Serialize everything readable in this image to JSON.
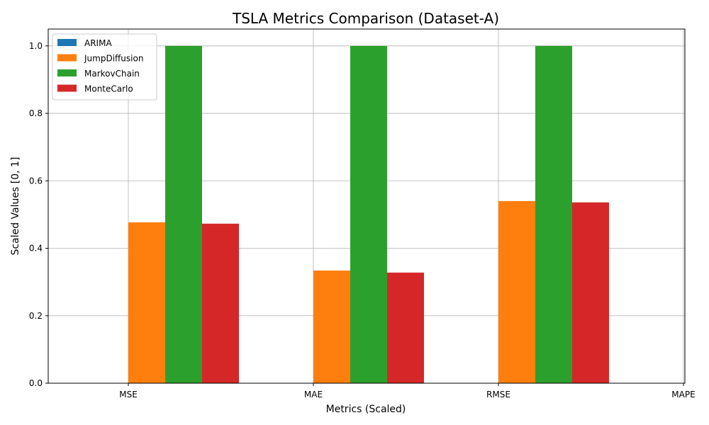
{
  "chart_data": {
    "type": "bar",
    "title": "TSLA Metrics Comparison (Dataset-A)",
    "xlabel": "Metrics (Scaled)",
    "ylabel": "Scaled Values [0, 1]",
    "categories": [
      "MSE",
      "MAE",
      "RMSE",
      "MAPE"
    ],
    "series": [
      {
        "name": "ARIMA",
        "color": "#1f77b4",
        "values": [
          0.0,
          0.0,
          0.0,
          0.0
        ]
      },
      {
        "name": "JumpDiffusion",
        "color": "#ff7f0e",
        "values": [
          0.477,
          0.334,
          0.54,
          0.0
        ]
      },
      {
        "name": "MarkovChain",
        "color": "#2ca02c",
        "values": [
          1.0,
          1.0,
          1.0,
          0.0
        ]
      },
      {
        "name": "MonteCarlo",
        "color": "#d62728",
        "values": [
          0.473,
          0.328,
          0.536,
          0.0
        ]
      }
    ],
    "ylim": [
      0,
      1.05
    ],
    "yticks": [
      "0.0",
      "0.2",
      "0.4",
      "0.6",
      "0.8",
      "1.0"
    ],
    "grid": true,
    "legend_position": "top-left"
  }
}
